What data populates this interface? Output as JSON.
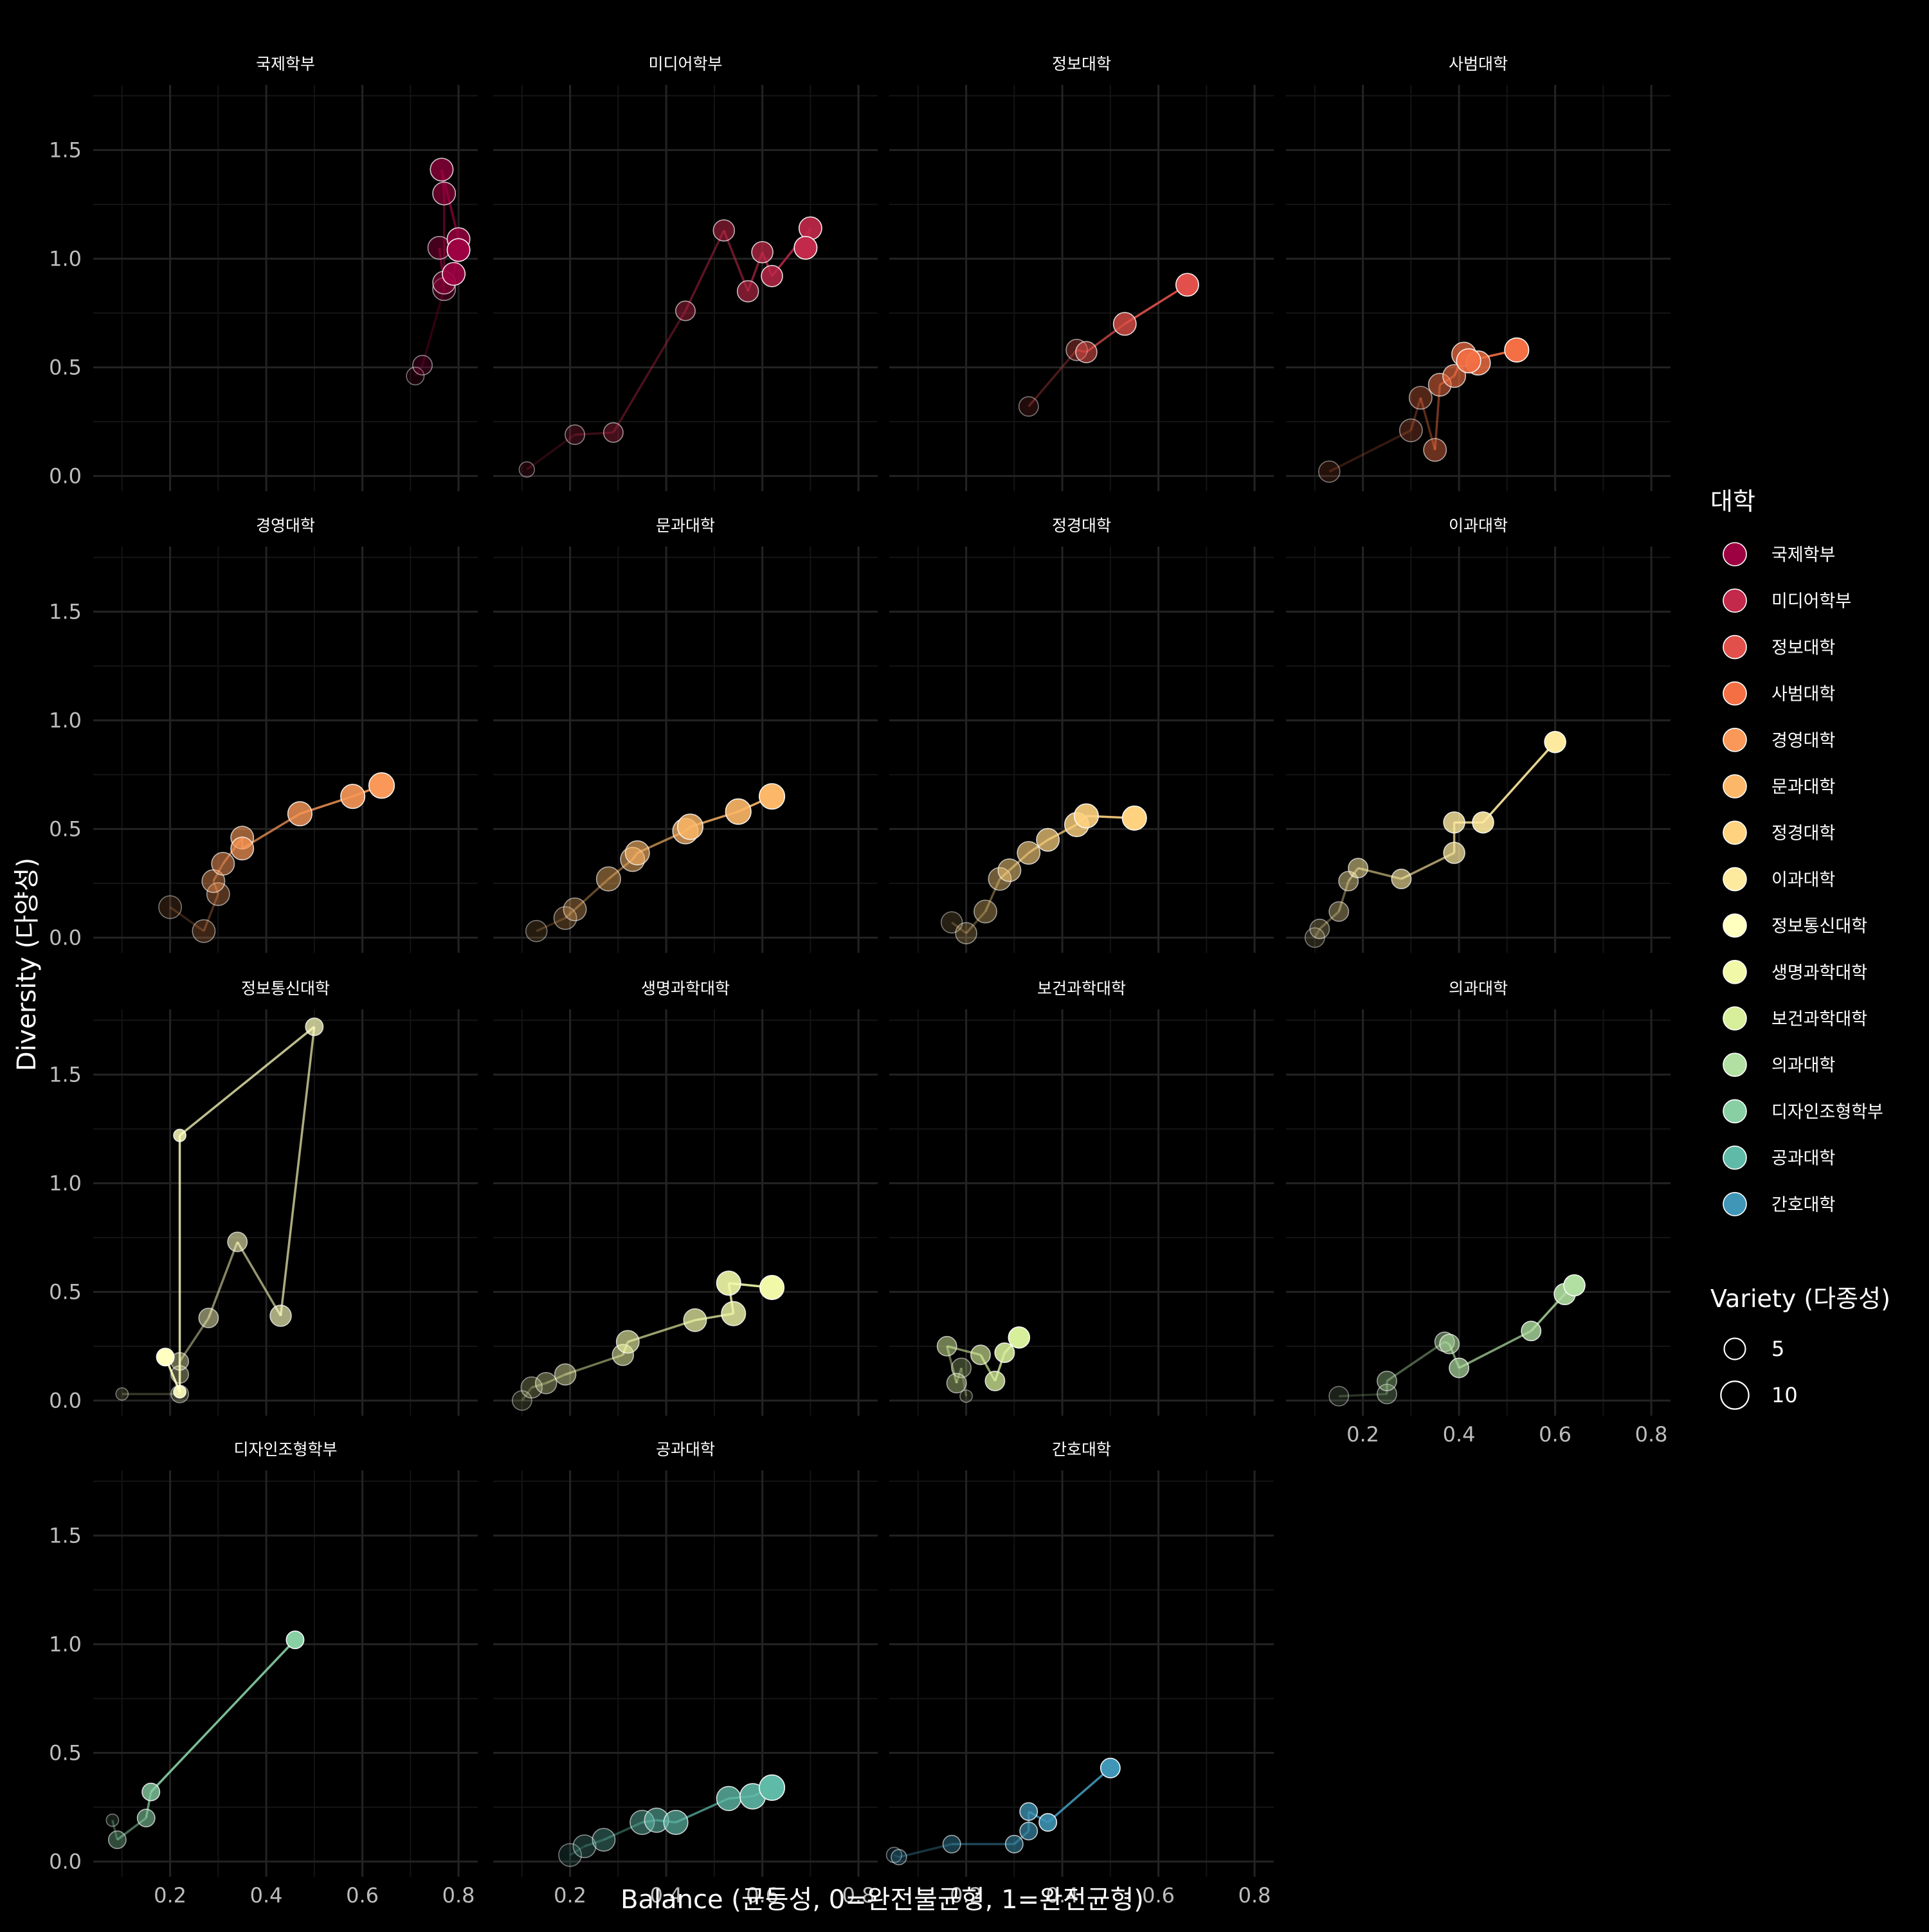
{
  "chart_data": {
    "type": "scatter",
    "subtype": "faceted connected bubble scatter",
    "xlabel": "Balance (균등성, 0=완전불균형, 1=완전균형)",
    "ylabel": "Diversity (다양성)",
    "xlim": [
      0.04,
      0.84
    ],
    "ylim": [
      -0.07,
      1.8
    ],
    "x_ticks": [
      0.2,
      0.4,
      0.6,
      0.8
    ],
    "x_tick_labels": [
      "0.2",
      "0.4",
      "0.6",
      "0.8"
    ],
    "y_ticks": [
      0.0,
      0.5,
      1.0,
      1.5
    ],
    "y_tick_labels": [
      "0.0",
      "0.5",
      "1.0",
      "1.5"
    ],
    "grid": true,
    "legend_placement": "right",
    "color_legend": {
      "title": "대학",
      "items": [
        {
          "label": "국제학부",
          "color": "#9E0142"
        },
        {
          "label": "미디어학부",
          "color": "#C2294A"
        },
        {
          "label": "정보대학",
          "color": "#E1504A"
        },
        {
          "label": "사범대학",
          "color": "#F47044"
        },
        {
          "label": "경영대학",
          "color": "#F99858"
        },
        {
          "label": "문과대학",
          "color": "#FDB768"
        },
        {
          "label": "정경대학",
          "color": "#FED27F"
        },
        {
          "label": "이과대학",
          "color": "#FEEA9F"
        },
        {
          "label": "정보통신대학",
          "color": "#FFFFBF"
        },
        {
          "label": "생명과학대학",
          "color": "#F1F9A9"
        },
        {
          "label": "보건과학대학",
          "color": "#D7EF9B"
        },
        {
          "label": "의과대학",
          "color": "#B2E0A2"
        },
        {
          "label": "디자인조형학부",
          "color": "#88CFA4"
        },
        {
          "label": "공과대학",
          "color": "#5FBAA8"
        },
        {
          "label": "간호대학",
          "color": "#3F96B7"
        }
      ]
    },
    "size_legend": {
      "title": "Variety (다종성)",
      "items": [
        {
          "label": "5",
          "value": 5
        },
        {
          "label": "10",
          "value": 10
        }
      ]
    },
    "panels": [
      {
        "title": "국제학부",
        "color": "#9E0142",
        "points": [
          {
            "x": 0.71,
            "y": 0.46,
            "variety": 3
          },
          {
            "x": 0.725,
            "y": 0.51,
            "variety": 4
          },
          {
            "x": 0.77,
            "y": 0.86,
            "variety": 6
          },
          {
            "x": 0.76,
            "y": 1.05,
            "variety": 6
          },
          {
            "x": 0.77,
            "y": 0.89,
            "variety": 6
          },
          {
            "x": 0.77,
            "y": 1.3,
            "variety": 6
          },
          {
            "x": 0.765,
            "y": 1.41,
            "variety": 6
          },
          {
            "x": 0.8,
            "y": 1.09,
            "variety": 6
          },
          {
            "x": 0.79,
            "y": 0.93,
            "variety": 6
          },
          {
            "x": 0.8,
            "y": 1.04,
            "variety": 6
          }
        ]
      },
      {
        "title": "미디어학부",
        "color": "#C2294A",
        "points": [
          {
            "x": 0.11,
            "y": 0.03,
            "variety": 2
          },
          {
            "x": 0.21,
            "y": 0.19,
            "variety": 4
          },
          {
            "x": 0.29,
            "y": 0.2,
            "variety": 4
          },
          {
            "x": 0.44,
            "y": 0.76,
            "variety": 4
          },
          {
            "x": 0.52,
            "y": 1.13,
            "variety": 5
          },
          {
            "x": 0.57,
            "y": 0.85,
            "variety": 5
          },
          {
            "x": 0.6,
            "y": 1.03,
            "variety": 5
          },
          {
            "x": 0.62,
            "y": 0.92,
            "variety": 5
          },
          {
            "x": 0.7,
            "y": 1.14,
            "variety": 6
          },
          {
            "x": 0.69,
            "y": 1.05,
            "variety": 6
          }
        ]
      },
      {
        "title": "정보대학",
        "color": "#E1504A",
        "points": [
          {
            "x": 0.33,
            "y": 0.32,
            "variety": 4
          },
          {
            "x": 0.43,
            "y": 0.58,
            "variety": 5
          },
          {
            "x": 0.45,
            "y": 0.57,
            "variety": 5
          },
          {
            "x": 0.53,
            "y": 0.7,
            "variety": 6
          },
          {
            "x": 0.66,
            "y": 0.88,
            "variety": 6
          }
        ]
      },
      {
        "title": "사범대학",
        "color": "#F47044",
        "points": [
          {
            "x": 0.13,
            "y": 0.02,
            "variety": 5
          },
          {
            "x": 0.3,
            "y": 0.21,
            "variety": 6
          },
          {
            "x": 0.32,
            "y": 0.36,
            "variety": 6
          },
          {
            "x": 0.35,
            "y": 0.12,
            "variety": 6
          },
          {
            "x": 0.36,
            "y": 0.42,
            "variety": 6
          },
          {
            "x": 0.39,
            "y": 0.46,
            "variety": 6
          },
          {
            "x": 0.41,
            "y": 0.56,
            "variety": 7
          },
          {
            "x": 0.44,
            "y": 0.52,
            "variety": 7
          },
          {
            "x": 0.42,
            "y": 0.53,
            "variety": 7
          },
          {
            "x": 0.52,
            "y": 0.58,
            "variety": 7
          }
        ]
      },
      {
        "title": "경영대학",
        "color": "#F99858",
        "points": [
          {
            "x": 0.2,
            "y": 0.14,
            "variety": 6
          },
          {
            "x": 0.27,
            "y": 0.03,
            "variety": 6
          },
          {
            "x": 0.3,
            "y": 0.2,
            "variety": 6
          },
          {
            "x": 0.29,
            "y": 0.26,
            "variety": 6
          },
          {
            "x": 0.31,
            "y": 0.34,
            "variety": 6
          },
          {
            "x": 0.35,
            "y": 0.46,
            "variety": 6
          },
          {
            "x": 0.35,
            "y": 0.41,
            "variety": 6
          },
          {
            "x": 0.47,
            "y": 0.57,
            "variety": 7
          },
          {
            "x": 0.58,
            "y": 0.65,
            "variety": 7
          },
          {
            "x": 0.64,
            "y": 0.7,
            "variety": 8
          }
        ]
      },
      {
        "title": "문과대학",
        "color": "#FDB768",
        "points": [
          {
            "x": 0.13,
            "y": 0.03,
            "variety": 5
          },
          {
            "x": 0.19,
            "y": 0.09,
            "variety": 6
          },
          {
            "x": 0.21,
            "y": 0.13,
            "variety": 6
          },
          {
            "x": 0.28,
            "y": 0.27,
            "variety": 7
          },
          {
            "x": 0.33,
            "y": 0.36,
            "variety": 7
          },
          {
            "x": 0.34,
            "y": 0.39,
            "variety": 7
          },
          {
            "x": 0.44,
            "y": 0.49,
            "variety": 8
          },
          {
            "x": 0.45,
            "y": 0.51,
            "variety": 8
          },
          {
            "x": 0.55,
            "y": 0.58,
            "variety": 8
          },
          {
            "x": 0.62,
            "y": 0.65,
            "variety": 8
          }
        ]
      },
      {
        "title": "정경대학",
        "color": "#FED27F",
        "points": [
          {
            "x": 0.17,
            "y": 0.07,
            "variety": 5
          },
          {
            "x": 0.2,
            "y": 0.02,
            "variety": 5
          },
          {
            "x": 0.24,
            "y": 0.12,
            "variety": 6
          },
          {
            "x": 0.27,
            "y": 0.27,
            "variety": 6
          },
          {
            "x": 0.29,
            "y": 0.31,
            "variety": 6
          },
          {
            "x": 0.33,
            "y": 0.39,
            "variety": 6
          },
          {
            "x": 0.37,
            "y": 0.45,
            "variety": 6
          },
          {
            "x": 0.43,
            "y": 0.52,
            "variety": 7
          },
          {
            "x": 0.45,
            "y": 0.56,
            "variety": 7
          },
          {
            "x": 0.55,
            "y": 0.55,
            "variety": 7
          }
        ]
      },
      {
        "title": "이과대학",
        "color": "#FEEA9F",
        "points": [
          {
            "x": 0.1,
            "y": 0.0,
            "variety": 4
          },
          {
            "x": 0.11,
            "y": 0.04,
            "variety": 4
          },
          {
            "x": 0.15,
            "y": 0.12,
            "variety": 4
          },
          {
            "x": 0.17,
            "y": 0.26,
            "variety": 4
          },
          {
            "x": 0.19,
            "y": 0.32,
            "variety": 4
          },
          {
            "x": 0.28,
            "y": 0.27,
            "variety": 4
          },
          {
            "x": 0.39,
            "y": 0.39,
            "variety": 5
          },
          {
            "x": 0.39,
            "y": 0.53,
            "variety": 5
          },
          {
            "x": 0.45,
            "y": 0.53,
            "variety": 5
          },
          {
            "x": 0.6,
            "y": 0.9,
            "variety": 5
          }
        ]
      },
      {
        "title": "정보통신대학",
        "color": "#FFFFBF",
        "points": [
          {
            "x": 0.1,
            "y": 0.03,
            "variety": 1
          },
          {
            "x": 0.22,
            "y": 0.03,
            "variety": 3
          },
          {
            "x": 0.22,
            "y": 0.12,
            "variety": 3
          },
          {
            "x": 0.22,
            "y": 0.18,
            "variety": 3
          },
          {
            "x": 0.28,
            "y": 0.38,
            "variety": 4
          },
          {
            "x": 0.34,
            "y": 0.73,
            "variety": 4
          },
          {
            "x": 0.43,
            "y": 0.39,
            "variety": 5
          },
          {
            "x": 0.5,
            "y": 1.72,
            "variety": 3
          },
          {
            "x": 0.22,
            "y": 1.22,
            "variety": 1
          },
          {
            "x": 0.22,
            "y": 0.04,
            "variety": 1
          },
          {
            "x": 0.19,
            "y": 0.2,
            "variety": 3
          }
        ]
      },
      {
        "title": "생명과학대학",
        "color": "#F1F9A9",
        "points": [
          {
            "x": 0.1,
            "y": 0.0,
            "variety": 4
          },
          {
            "x": 0.12,
            "y": 0.06,
            "variety": 5
          },
          {
            "x": 0.15,
            "y": 0.08,
            "variety": 5
          },
          {
            "x": 0.19,
            "y": 0.12,
            "variety": 5
          },
          {
            "x": 0.31,
            "y": 0.21,
            "variety": 5
          },
          {
            "x": 0.32,
            "y": 0.27,
            "variety": 6
          },
          {
            "x": 0.46,
            "y": 0.37,
            "variety": 6
          },
          {
            "x": 0.54,
            "y": 0.4,
            "variety": 7
          },
          {
            "x": 0.53,
            "y": 0.54,
            "variety": 7
          },
          {
            "x": 0.62,
            "y": 0.52,
            "variety": 7
          }
        ]
      },
      {
        "title": "보건과학대학",
        "color": "#D7EF9B",
        "points": [
          {
            "x": 0.2,
            "y": 0.02,
            "variety": 1
          },
          {
            "x": 0.19,
            "y": 0.15,
            "variety": 4
          },
          {
            "x": 0.18,
            "y": 0.08,
            "variety": 4
          },
          {
            "x": 0.16,
            "y": 0.25,
            "variety": 4
          },
          {
            "x": 0.23,
            "y": 0.21,
            "variety": 4
          },
          {
            "x": 0.26,
            "y": 0.09,
            "variety": 4
          },
          {
            "x": 0.28,
            "y": 0.22,
            "variety": 4
          },
          {
            "x": 0.31,
            "y": 0.29,
            "variety": 5
          }
        ]
      },
      {
        "title": "의과대학",
        "color": "#B2E0A2",
        "points": [
          {
            "x": 0.15,
            "y": 0.02,
            "variety": 4
          },
          {
            "x": 0.25,
            "y": 0.03,
            "variety": 4
          },
          {
            "x": 0.25,
            "y": 0.09,
            "variety": 4
          },
          {
            "x": 0.37,
            "y": 0.27,
            "variety": 4
          },
          {
            "x": 0.38,
            "y": 0.26,
            "variety": 4
          },
          {
            "x": 0.4,
            "y": 0.15,
            "variety": 4
          },
          {
            "x": 0.55,
            "y": 0.32,
            "variety": 4
          },
          {
            "x": 0.62,
            "y": 0.49,
            "variety": 5
          },
          {
            "x": 0.64,
            "y": 0.53,
            "variety": 5
          }
        ]
      },
      {
        "title": "디자인조형학부",
        "color": "#88CFA4",
        "points": [
          {
            "x": 0.08,
            "y": 0.19,
            "variety": 1
          },
          {
            "x": 0.09,
            "y": 0.1,
            "variety": 3
          },
          {
            "x": 0.15,
            "y": 0.2,
            "variety": 3
          },
          {
            "x": 0.16,
            "y": 0.32,
            "variety": 3
          },
          {
            "x": 0.46,
            "y": 1.02,
            "variety": 3
          }
        ]
      },
      {
        "title": "공과대학",
        "color": "#5FBAA8",
        "points": [
          {
            "x": 0.2,
            "y": 0.03,
            "variety": 6
          },
          {
            "x": 0.23,
            "y": 0.07,
            "variety": 6
          },
          {
            "x": 0.27,
            "y": 0.1,
            "variety": 6
          },
          {
            "x": 0.35,
            "y": 0.18,
            "variety": 7
          },
          {
            "x": 0.38,
            "y": 0.19,
            "variety": 7
          },
          {
            "x": 0.42,
            "y": 0.18,
            "variety": 7
          },
          {
            "x": 0.53,
            "y": 0.29,
            "variety": 7
          },
          {
            "x": 0.58,
            "y": 0.3,
            "variety": 8
          },
          {
            "x": 0.62,
            "y": 0.34,
            "variety": 8
          }
        ]
      },
      {
        "title": "간호대학",
        "color": "#3F96B7",
        "points": [
          {
            "x": 0.05,
            "y": 0.03,
            "variety": 2
          },
          {
            "x": 0.06,
            "y": 0.02,
            "variety": 2
          },
          {
            "x": 0.17,
            "y": 0.08,
            "variety": 3
          },
          {
            "x": 0.3,
            "y": 0.08,
            "variety": 3
          },
          {
            "x": 0.33,
            "y": 0.14,
            "variety": 3
          },
          {
            "x": 0.33,
            "y": 0.23,
            "variety": 3
          },
          {
            "x": 0.37,
            "y": 0.18,
            "variety": 3
          },
          {
            "x": 0.5,
            "y": 0.43,
            "variety": 4
          }
        ]
      }
    ]
  }
}
